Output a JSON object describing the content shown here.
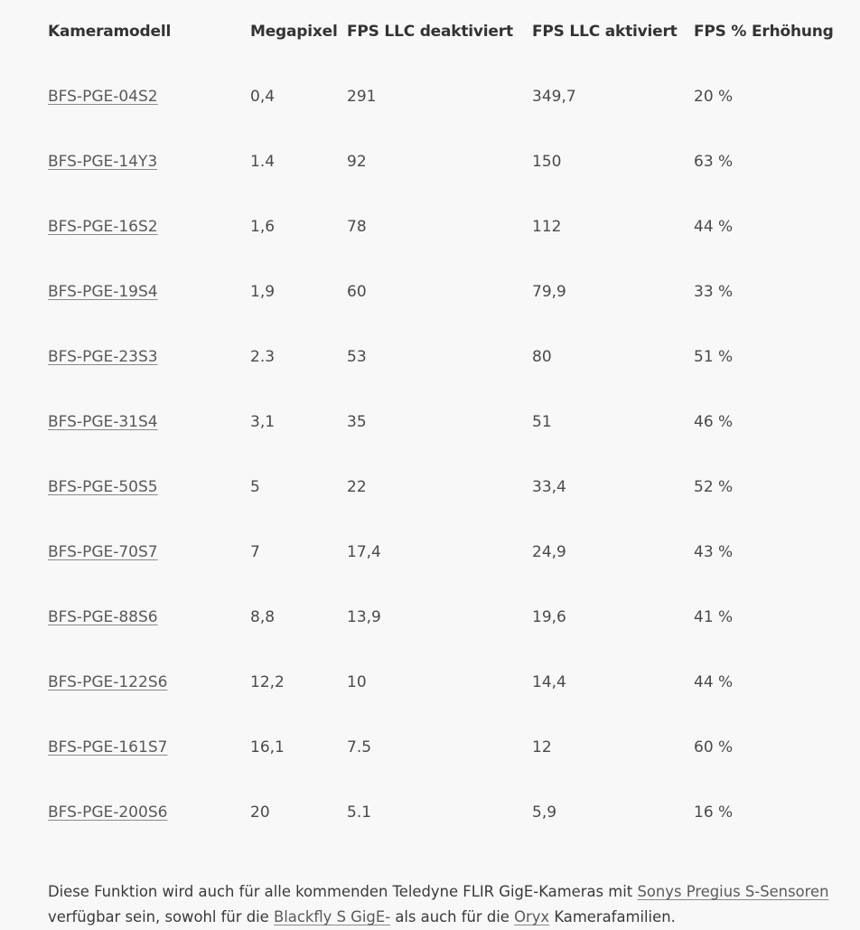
{
  "table": {
    "headers": [
      "Kameramodell",
      "Megapixel",
      "FPS LLC deaktiviert",
      "FPS LLC aktiviert",
      "FPS % Erhöhung"
    ],
    "rows": [
      {
        "model": "BFS-PGE-04S2",
        "megapixel": "0,4",
        "fps_off": "291",
        "fps_on": "349,7",
        "increase": "20 %"
      },
      {
        "model": "BFS-PGE-14Y3",
        "megapixel": "1.4",
        "fps_off": "92",
        "fps_on": "150",
        "increase": "63 %"
      },
      {
        "model": "BFS-PGE-16S2",
        "megapixel": "1,6",
        "fps_off": "78",
        "fps_on": "112",
        "increase": "44 %"
      },
      {
        "model": "BFS-PGE-19S4",
        "megapixel": "1,9",
        "fps_off": "60",
        "fps_on": "79,9",
        "increase": "33 %"
      },
      {
        "model": "BFS-PGE-23S3",
        "megapixel": "2.3",
        "fps_off": "53",
        "fps_on": "80",
        "increase": "51 %"
      },
      {
        "model": "BFS-PGE-31S4",
        "megapixel": "3,1",
        "fps_off": "35",
        "fps_on": "51",
        "increase": "46 %"
      },
      {
        "model": "BFS-PGE-50S5",
        "megapixel": "5",
        "fps_off": "22",
        "fps_on": "33,4",
        "increase": "52 %"
      },
      {
        "model": "BFS-PGE-70S7",
        "megapixel": "7",
        "fps_off": "17,4",
        "fps_on": "24,9",
        "increase": "43 %"
      },
      {
        "model": "BFS-PGE-88S6",
        "megapixel": "8,8",
        "fps_off": "13,9",
        "fps_on": "19,6",
        "increase": "41 %"
      },
      {
        "model": "BFS-PGE-122S6",
        "megapixel": "12,2",
        "fps_off": "10",
        "fps_on": "14,4",
        "increase": "44 %"
      },
      {
        "model": "BFS-PGE-161S7",
        "megapixel": "16,1",
        "fps_off": "7.5",
        "fps_on": "12",
        "increase": "60 %"
      },
      {
        "model": "BFS-PGE-200S6",
        "megapixel": "20",
        "fps_off": "5.1",
        "fps_on": "5,9",
        "increase": "16 %"
      }
    ]
  },
  "footer": {
    "text_1": "Diese Funktion wird auch für alle kommenden Teledyne FLIR GigE-Kameras mit ",
    "link_1": "Sonys Pregius S-Sensoren",
    "text_2": " verfügbar sein, sowohl für die ",
    "link_2": "Blackfly S GigE-",
    "text_3": " als auch für die ",
    "link_3": "Oryx",
    "text_4": " Kamerafamilien."
  }
}
